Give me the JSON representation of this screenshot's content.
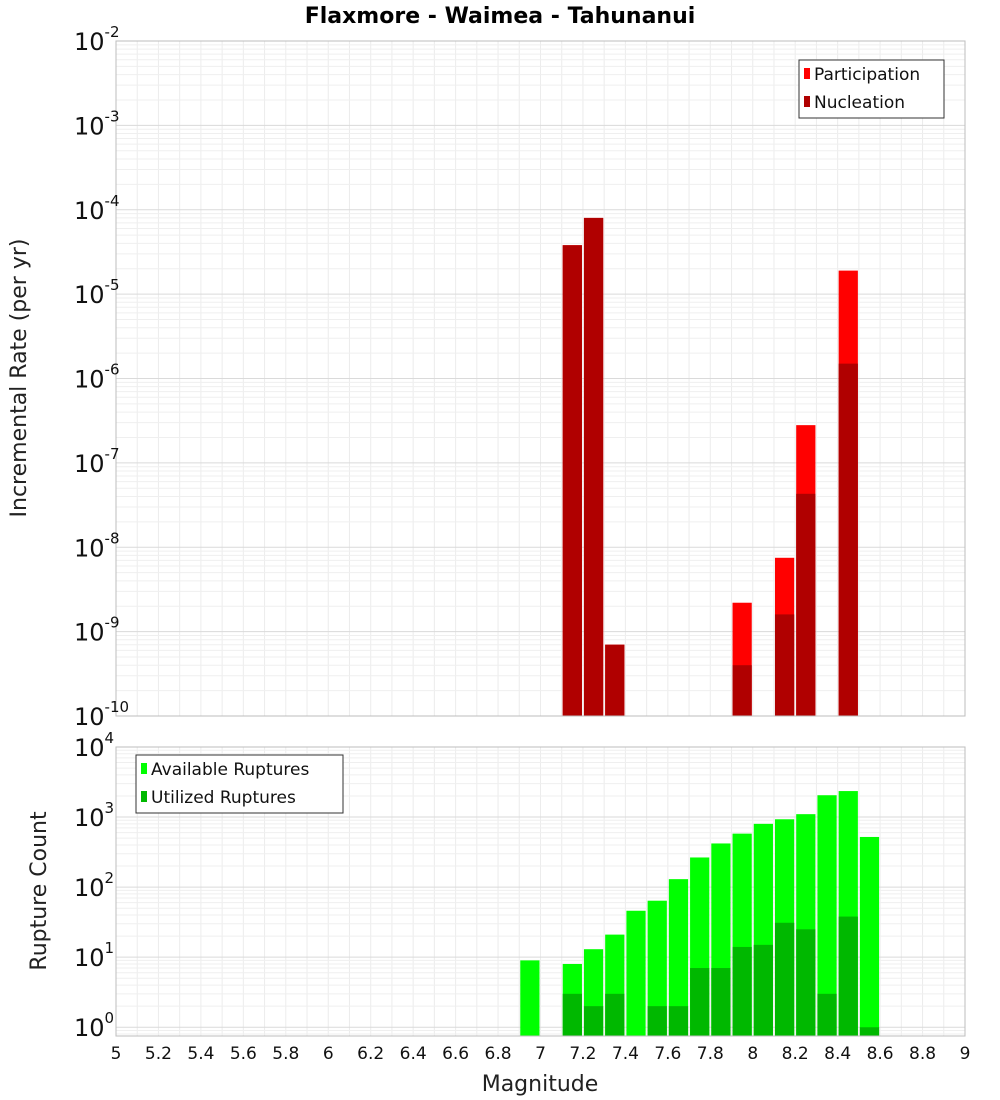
{
  "chart_data": {
    "title": "Flaxmore - Waimea - Tahunanui",
    "xlabel": "Magnitude",
    "xlim": [
      5,
      9
    ],
    "xticks": [
      "5",
      "5.2",
      "5.4",
      "5.6",
      "5.8",
      "6",
      "6.2",
      "6.4",
      "6.6",
      "6.8",
      "7",
      "7.2",
      "7.4",
      "7.6",
      "7.8",
      "8",
      "8.2",
      "8.4",
      "8.6",
      "8.8",
      "9"
    ],
    "bin_width": 0.1,
    "panels": [
      {
        "type": "bar",
        "ylabel": "Incremental Rate (per yr)",
        "yscale": "log",
        "ylim": [
          1e-10,
          0.01
        ],
        "ytick_exponents": [
          "-2",
          "-3",
          "-4",
          "-5",
          "-6",
          "-7",
          "-8",
          "-9",
          "-10"
        ],
        "legend_position": "top-right",
        "series": [
          {
            "name": "Participation",
            "color": "#ff0000",
            "x": [
              7.15,
              7.25,
              7.35,
              7.95,
              8.15,
              8.25,
              8.45
            ],
            "values": [
              3.8e-05,
              8e-05,
              7e-10,
              2.2e-09,
              7.5e-09,
              2.8e-07,
              1.9e-05
            ]
          },
          {
            "name": "Nucleation",
            "color": "#b00000",
            "x": [
              7.15,
              7.25,
              7.35,
              7.95,
              8.15,
              8.25,
              8.45
            ],
            "values": [
              3.8e-05,
              8e-05,
              7e-10,
              4e-10,
              1.6e-09,
              4.3e-08,
              1.5e-06
            ]
          }
        ]
      },
      {
        "type": "bar",
        "ylabel": "Rupture Count",
        "yscale": "log",
        "ylim": [
          0.75,
          10000
        ],
        "ytick_exponents": [
          "4",
          "3",
          "2",
          "1",
          "0"
        ],
        "legend_position": "top-left",
        "series": [
          {
            "name": "Available Ruptures",
            "color": "#00ff00",
            "x": [
              6.95,
              7.15,
              7.25,
              7.35,
              7.45,
              7.55,
              7.65,
              7.75,
              7.85,
              7.95,
              8.05,
              8.15,
              8.25,
              8.35,
              8.45,
              8.55
            ],
            "values": [
              9,
              8,
              13,
              21,
              46,
              64,
              130,
              265,
              420,
              580,
              800,
              930,
              1100,
              2050,
              2350,
              520
            ]
          },
          {
            "name": "Utilized Ruptures",
            "color": "#00b800",
            "x": [
              7.15,
              7.25,
              7.35,
              7.55,
              7.65,
              7.75,
              7.85,
              7.95,
              8.05,
              8.15,
              8.25,
              8.35,
              8.45,
              8.55
            ],
            "values": [
              3,
              2,
              3,
              2,
              2,
              7,
              7,
              14,
              15,
              31,
              25,
              3,
              38,
              1
            ]
          }
        ]
      }
    ]
  }
}
